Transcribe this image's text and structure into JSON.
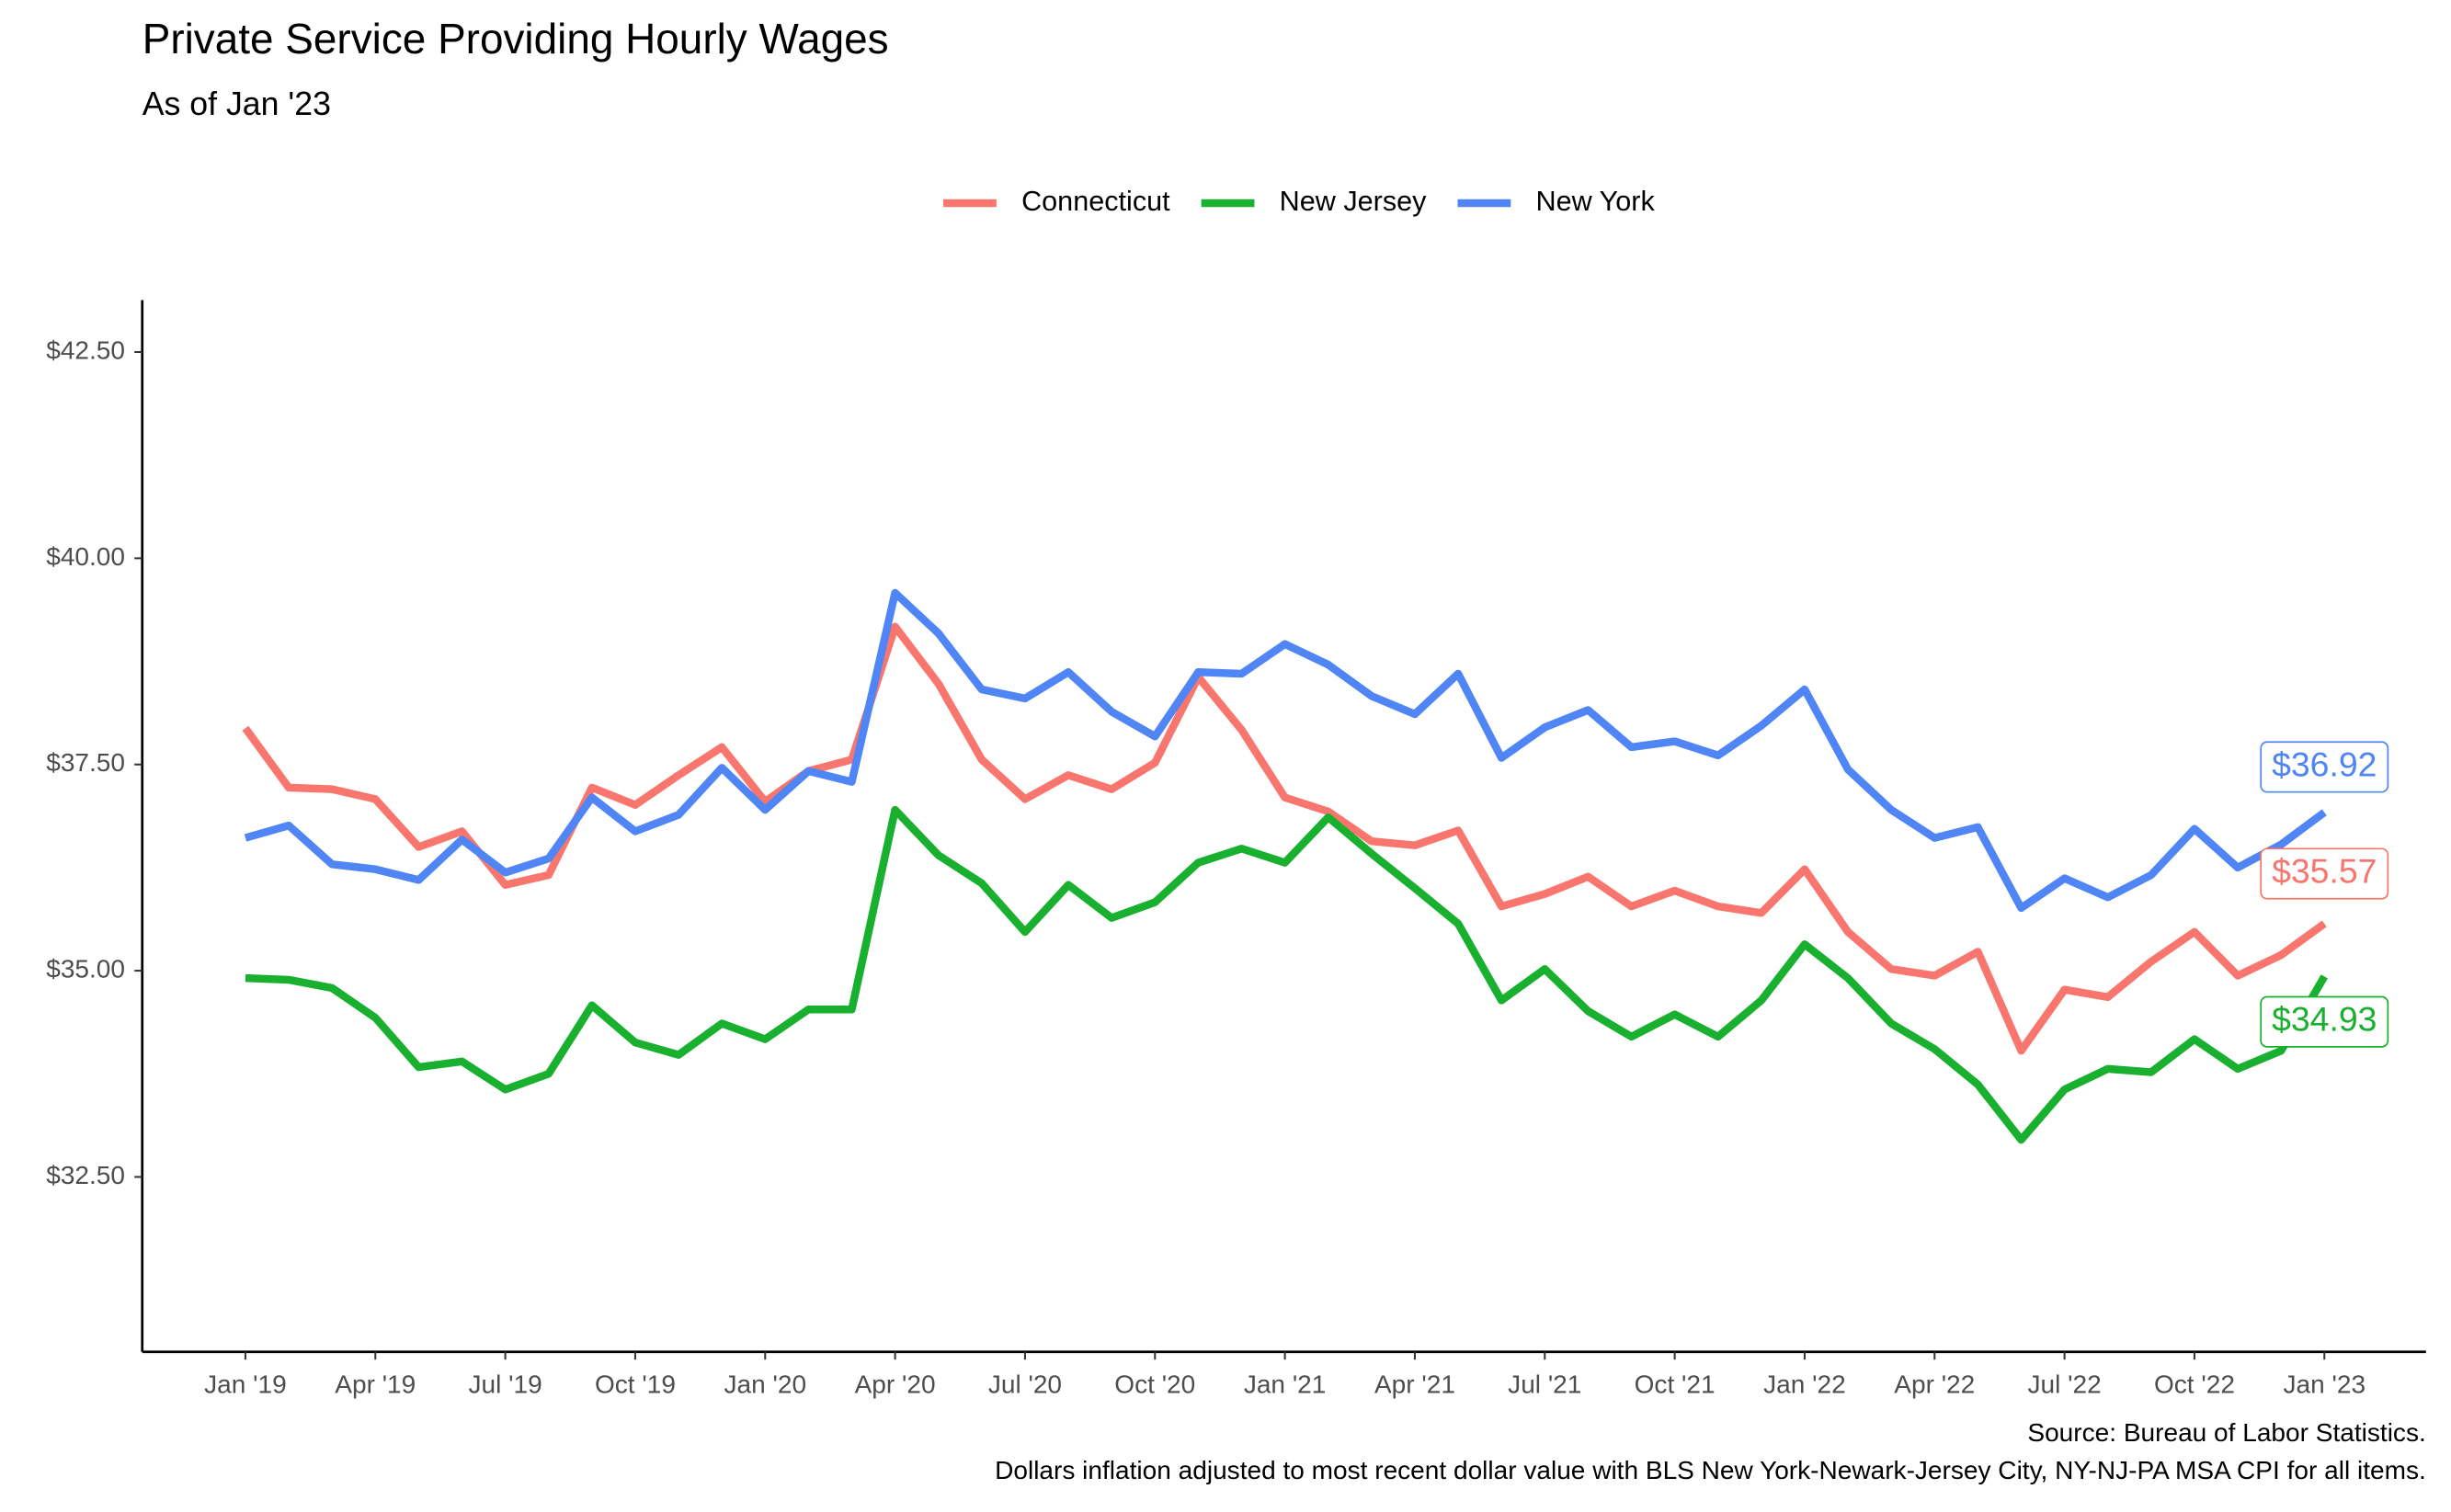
{
  "chart_data": {
    "type": "line",
    "title": "Private Service Providing Hourly Wages",
    "subtitle": "As of Jan '23",
    "caption": [
      "Source: Bureau of Labor Statistics.",
      "Dollars inflation adjusted to most recent dollar value with BLS New York-Newark-Jersey City, NY-NJ-PA MSA CPI for all items."
    ],
    "legend_position": "top",
    "grid": false,
    "categories": [
      "Jan '19",
      null,
      null,
      "Apr '19",
      null,
      null,
      "Jul '19",
      null,
      null,
      "Oct '19",
      null,
      null,
      "Jan '20",
      null,
      null,
      "Apr '20",
      null,
      null,
      "Jul '20",
      null,
      null,
      "Oct '20",
      null,
      null,
      "Jan '21",
      null,
      null,
      "Apr '21",
      null,
      null,
      "Jul '21",
      null,
      null,
      "Oct '21",
      null,
      null,
      "Jan '22",
      null,
      null,
      "Apr '22",
      null,
      null,
      "Jul '22",
      null,
      null,
      "Oct '22",
      null,
      null,
      "Jan '23"
    ],
    "ylim": [
      30.38,
      43.13
    ],
    "yticks": [
      {
        "value": 32.5,
        "label": "$32.50"
      },
      {
        "value": 35,
        "label": "$35.00"
      },
      {
        "value": 37.5,
        "label": "$37.50"
      },
      {
        "value": 40,
        "label": "$40.00"
      },
      {
        "value": 42.5,
        "label": "$42.50"
      }
    ],
    "series": [
      {
        "name": "Connecticut",
        "color": "#f8766d",
        "values": [
          37.94,
          37.22,
          37.2,
          37.08,
          36.5,
          36.69,
          36.04,
          36.16,
          37.22,
          37.01,
          37.37,
          37.71,
          37.05,
          37.42,
          37.56,
          39.17,
          38.48,
          37.56,
          37.08,
          37.37,
          37.2,
          37.52,
          38.56,
          37.92,
          37.1,
          36.93,
          36.57,
          36.52,
          36.7,
          35.78,
          35.93,
          36.14,
          35.78,
          35.97,
          35.78,
          35.7,
          36.23,
          35.47,
          35.02,
          34.94,
          35.23,
          34.03,
          34.77,
          34.68,
          35.11,
          35.47,
          34.94,
          35.19,
          35.57
        ],
        "value_labels": [
          null,
          null,
          null,
          null,
          null,
          null,
          null,
          null,
          null,
          null,
          null,
          null,
          null,
          null,
          null,
          null,
          null,
          null,
          null,
          null,
          null,
          null,
          null,
          null,
          null,
          null,
          null,
          null,
          null,
          null,
          null,
          null,
          null,
          null,
          null,
          null,
          null,
          null,
          null,
          null,
          null,
          null,
          null,
          null,
          null,
          null,
          null,
          null,
          "$35.57"
        ]
      },
      {
        "name": "New Jersey",
        "color": "#1ab02f",
        "values": [
          34.91,
          34.89,
          34.79,
          34.43,
          33.83,
          33.9,
          33.56,
          33.75,
          34.58,
          34.13,
          33.98,
          34.36,
          34.17,
          34.53,
          34.53,
          36.95,
          36.4,
          36.06,
          35.47,
          36.04,
          35.64,
          35.83,
          36.31,
          36.48,
          36.31,
          36.86,
          36.42,
          36.0,
          35.57,
          34.64,
          35.02,
          34.51,
          34.2,
          34.47,
          34.2,
          34.64,
          35.32,
          34.91,
          34.36,
          34.05,
          33.62,
          32.95,
          33.56,
          33.81,
          33.77,
          34.17,
          33.81,
          34.03,
          34.93
        ],
        "value_labels": [
          null,
          null,
          null,
          null,
          null,
          null,
          null,
          null,
          null,
          null,
          null,
          null,
          null,
          null,
          null,
          null,
          null,
          null,
          null,
          null,
          null,
          null,
          null,
          null,
          null,
          null,
          null,
          null,
          null,
          null,
          null,
          null,
          null,
          null,
          null,
          null,
          null,
          null,
          null,
          null,
          null,
          null,
          null,
          null,
          null,
          null,
          null,
          null,
          "$34.93"
        ]
      },
      {
        "name": "New York",
        "color": "#5085f5",
        "values": [
          36.61,
          36.76,
          36.29,
          36.23,
          36.1,
          36.59,
          36.19,
          36.36,
          37.1,
          36.69,
          36.89,
          37.46,
          36.95,
          37.42,
          37.29,
          39.58,
          39.09,
          38.41,
          38.3,
          38.62,
          38.14,
          37.84,
          38.62,
          38.6,
          38.96,
          38.71,
          38.33,
          38.11,
          38.6,
          37.58,
          37.95,
          38.16,
          37.71,
          37.78,
          37.61,
          37.97,
          38.41,
          37.44,
          36.95,
          36.61,
          36.74,
          35.76,
          36.12,
          35.89,
          36.16,
          36.72,
          36.25,
          36.53,
          36.92
        ],
        "value_labels": [
          null,
          null,
          null,
          null,
          null,
          null,
          null,
          null,
          null,
          null,
          null,
          null,
          null,
          null,
          null,
          null,
          null,
          null,
          null,
          null,
          null,
          null,
          null,
          null,
          null,
          null,
          null,
          null,
          null,
          null,
          null,
          null,
          null,
          null,
          null,
          null,
          null,
          null,
          null,
          null,
          null,
          null,
          null,
          null,
          null,
          null,
          null,
          null,
          "$36.92"
        ]
      }
    ]
  }
}
